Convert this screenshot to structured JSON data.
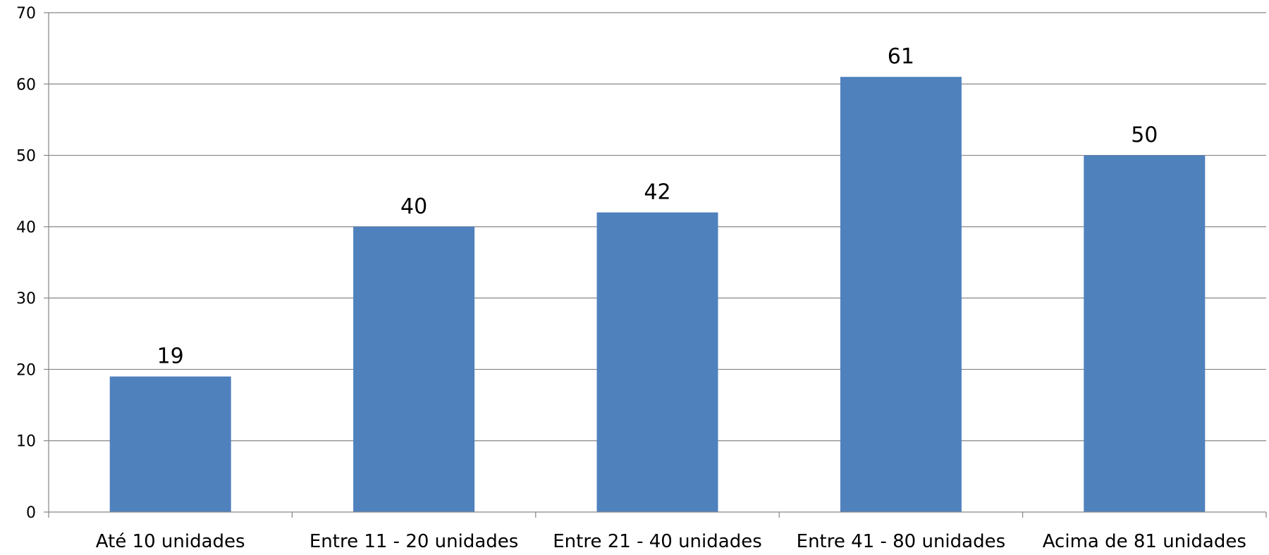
{
  "chart_data": {
    "type": "bar",
    "title": "",
    "xlabel": "",
    "ylabel": "",
    "categories": [
      "Até 10 unidades",
      "Entre 11 - 20 unidades",
      "Entre 21 - 40 unidades",
      "Entre 41 - 80 unidades",
      "Acima de 81 unidades"
    ],
    "values": [
      19,
      40,
      42,
      61,
      50
    ],
    "data_labels": [
      "19",
      "40",
      "42",
      "61",
      "50"
    ],
    "ylim": [
      0,
      70
    ],
    "yticks": [
      0,
      10,
      20,
      30,
      40,
      50,
      60,
      70
    ],
    "grid": true,
    "legend": "none",
    "bar_color": "#4F81BD",
    "grid_color": "#868686"
  }
}
